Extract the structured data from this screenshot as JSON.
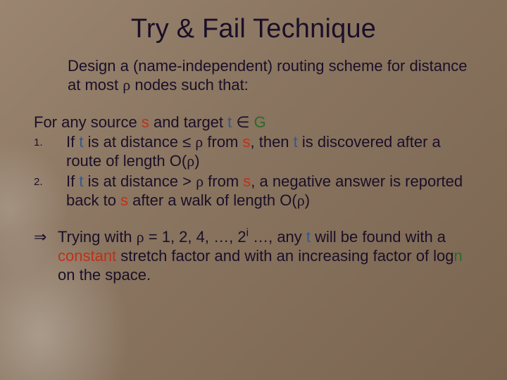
{
  "colors": {
    "background_gradient": [
      "#9a8570",
      "#8a7560",
      "#7a6550"
    ],
    "text_main": "#1a0f28",
    "var_s": "#c03018",
    "var_t": "#305890",
    "var_g": "#2a6a2a",
    "constant": "#c03018"
  },
  "typography": {
    "title_fontsize": 38,
    "body_fontsize": 22,
    "list_number_fontsize": 15,
    "font_family": "Verdana"
  },
  "title": "Try & Fail Technique",
  "intro": {
    "pre1": "Design a (name-independent) routing scheme for distance at most ",
    "rho": "ρ",
    "post1": " nodes such that:"
  },
  "for_line": {
    "pre": "For any source ",
    "s": "s",
    "mid": " and target ",
    "t": "t",
    "in": " ∈ ",
    "g": "G"
  },
  "items": [
    {
      "num": "1.",
      "p1": "If ",
      "t1": "t",
      "p2": " is at distance ≤ ",
      "rho1": "ρ",
      "p3": " from ",
      "s1": "s",
      "p4": ", then ",
      "t2": "t",
      "p5": " is discovered after a route of length O(",
      "rho2": "ρ",
      "p6": ")"
    },
    {
      "num": "2.",
      "p1": "If ",
      "t1": "t",
      "p2": " is at distance > ",
      "rho1": "ρ",
      "p3": " from ",
      "s1": "s",
      "p4": ", a negative answer is reported back to ",
      "s2": "s",
      "p5": " after a walk of length O(",
      "rho2": "ρ",
      "p6": ")"
    }
  ],
  "conclusion": {
    "sym": "⇒",
    "p1": "Trying with ",
    "rho": "ρ",
    "p2": " = 1, 2, 4, …, 2",
    "exp": "i",
    "p3": " …, any ",
    "t": "t",
    "p4": " will be found with a ",
    "const_word": "constant",
    "p5": " stretch factor and with an increasing factor of log",
    "n": "n",
    "p6": " on the space."
  }
}
